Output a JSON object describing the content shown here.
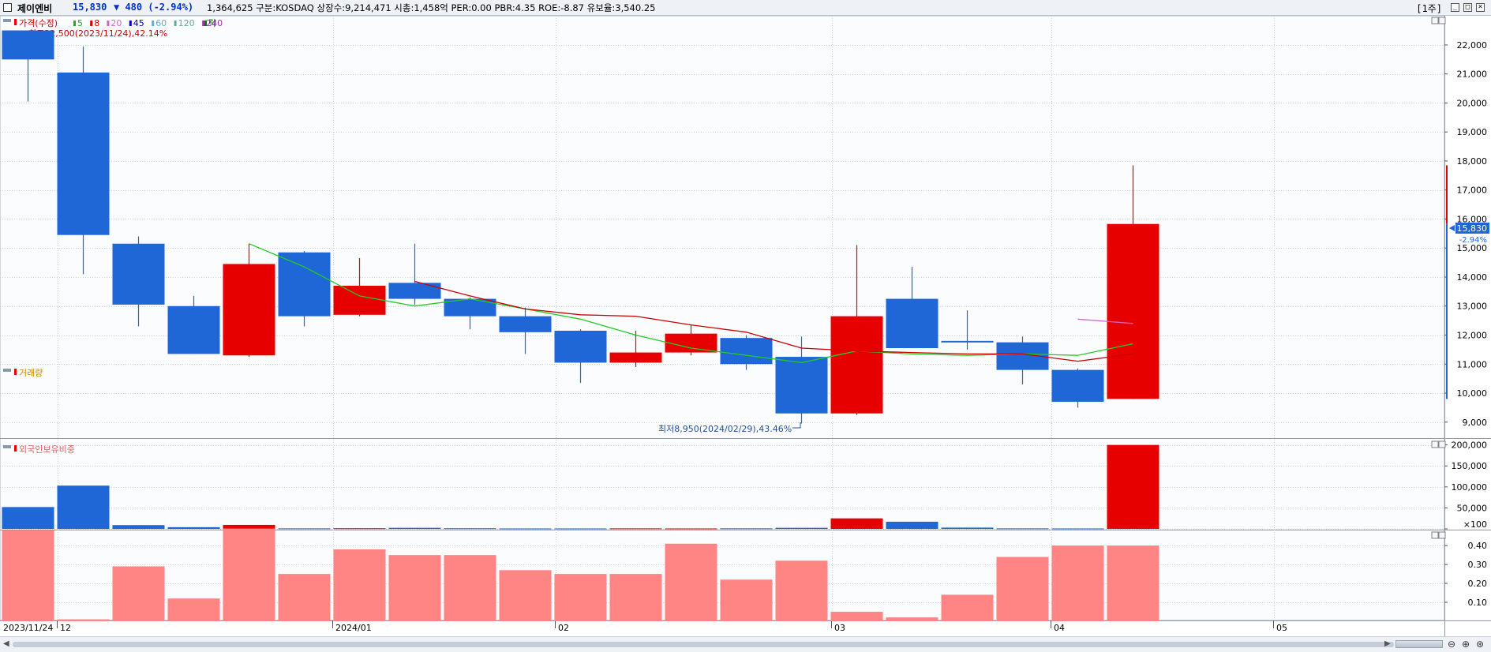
{
  "header": {
    "stock_name": "제이엔비",
    "price": "15,830",
    "change": "▼ 480 (-2.94%)",
    "info": "1,364,625  구분:KOSDAQ 상장수:9,214,471 시총:1,458억 PER:0.00 PBR:4.35 ROE:-8.87 유보율:3,540.25",
    "period": "[1주]"
  },
  "legend": {
    "price_label": "가격(수정)",
    "ma_labels": [
      "5",
      "8",
      "20",
      "45",
      "60",
      "120",
      "240"
    ],
    "ma_colors": [
      "#22aa22",
      "#cc0000",
      "#cc66cc",
      "#0000cc",
      "#66aacc",
      "#66aa99",
      "#9933aa"
    ],
    "extra_label": "락",
    "extra_color": "#007700",
    "high_note": "최고22,500(2023/11/24),42.14%",
    "low_note": "최저8,950(2024/02/29),43.46%"
  },
  "current_price_tag": "15,830",
  "current_change_tag": "-2.94%",
  "volume_label": "거래량",
  "foreign_label": "외국인보유비중",
  "colors": {
    "up": "#e60000",
    "down": "#1f66d6",
    "foreign_bar": "#ff8585",
    "ma5": "#22cc22",
    "ma8": "#cc0000",
    "ma20": "#cc66cc"
  },
  "chart_data": [
    {
      "type": "candlestick",
      "title": "가격(수정)",
      "x": [
        "2023-11-24",
        "2023-12-01",
        "2023-12-08",
        "2023-12-15",
        "2023-12-22",
        "2023-12-29",
        "2024-01-05",
        "2024-01-12",
        "2024-01-19",
        "2024-01-26",
        "2024-02-02",
        "2024-02-09",
        "2024-02-16",
        "2024-02-23",
        "2024-03-01",
        "2024-03-08",
        "2024-03-15",
        "2024-03-22",
        "2024-03-29",
        "2024-04-05",
        "2024-04-12"
      ],
      "ohlc": [
        [
          22500,
          22500,
          20050,
          21500
        ],
        [
          21050,
          21950,
          14100,
          15450
        ],
        [
          15150,
          15400,
          12300,
          13050
        ],
        [
          13000,
          13350,
          11350,
          11350
        ],
        [
          11300,
          15150,
          11250,
          14450
        ],
        [
          14850,
          14900,
          12300,
          12650
        ],
        [
          12700,
          14650,
          12650,
          13700
        ],
        [
          13800,
          15150,
          13050,
          13250
        ],
        [
          13250,
          13300,
          12200,
          12650
        ],
        [
          12650,
          12950,
          11350,
          12100
        ],
        [
          12150,
          12200,
          10350,
          11050
        ],
        [
          11050,
          12150,
          10900,
          11400
        ],
        [
          11400,
          12350,
          11300,
          12050
        ],
        [
          11900,
          12000,
          10800,
          11000
        ],
        [
          11250,
          11950,
          8950,
          9300
        ],
        [
          9300,
          15100,
          9250,
          12650
        ],
        [
          13250,
          14350,
          11550,
          11550
        ],
        [
          11800,
          12850,
          11500,
          11750
        ],
        [
          11750,
          11950,
          10300,
          10800
        ],
        [
          10800,
          10850,
          9500,
          9700
        ],
        [
          9800,
          17850,
          9800,
          15830
        ]
      ],
      "ma5": [
        null,
        null,
        null,
        null,
        15150,
        14350,
        13350,
        13000,
        13250,
        12900,
        12550,
        12000,
        11550,
        11300,
        11050,
        11450,
        11350,
        11300,
        11350,
        11300,
        11700
      ],
      "ma8": [
        null,
        null,
        null,
        null,
        null,
        null,
        null,
        13850,
        13350,
        12900,
        12700,
        12650,
        12350,
        12100,
        11550,
        11450,
        11400,
        11350,
        11350,
        11100,
        11350
      ],
      "ma20": [
        null,
        null,
        null,
        null,
        null,
        null,
        null,
        null,
        null,
        null,
        null,
        null,
        null,
        null,
        null,
        null,
        null,
        null,
        null,
        12550,
        12400
      ],
      "y_ticks": [
        9000,
        10000,
        11000,
        12000,
        13000,
        14000,
        15000,
        16000,
        17000,
        18000,
        19000,
        20000,
        21000,
        22000
      ],
      "ylim": [
        8450,
        22950
      ]
    },
    {
      "type": "bar",
      "title": "거래량",
      "values": [
        52000,
        103000,
        9000,
        4000,
        9500,
        1200,
        1500,
        2500,
        1500,
        1000,
        1000,
        1200,
        1000,
        1300,
        2500,
        25000,
        17000,
        3000,
        1200,
        1000,
        200000
      ],
      "y_ticks": [
        100,
        50000,
        100000,
        150000,
        200000
      ],
      "ylim": [
        0,
        205000
      ]
    },
    {
      "type": "bar",
      "title": "외국인보유비중",
      "values": [
        0.48,
        0.01,
        0.29,
        0.12,
        0.49,
        0.25,
        0.38,
        0.35,
        0.35,
        0.27,
        0.25,
        0.25,
        0.41,
        0.22,
        0.32,
        0.05,
        0.02,
        0.14,
        0.34,
        0.4,
        0.4
      ],
      "y_ticks": [
        0.1,
        0.2,
        0.3,
        0.4
      ],
      "ylim": [
        0,
        0.48
      ]
    }
  ],
  "x_axis_labels": [
    "2023/11/24",
    "12",
    "2024/01",
    "02",
    "03",
    "04",
    "05"
  ]
}
